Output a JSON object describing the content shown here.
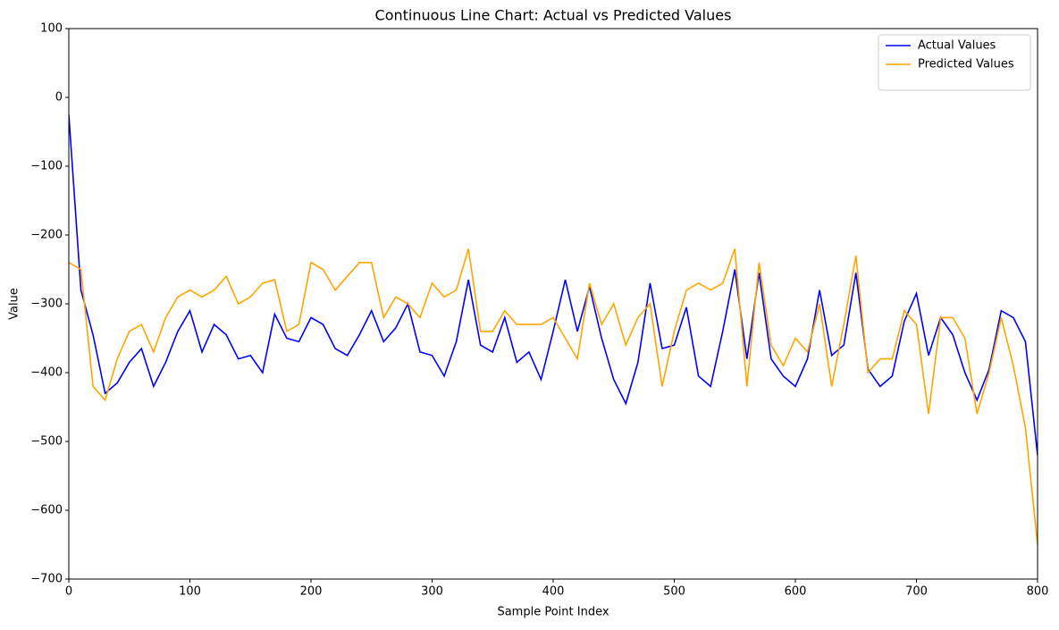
{
  "chart_data": {
    "type": "line",
    "title": "Continuous Line Chart: Actual vs Predicted Values",
    "x_label": "Sample Point Index",
    "y_label": "Value",
    "x": [
      0,
      10,
      20,
      30,
      40,
      50,
      60,
      70,
      80,
      90,
      100,
      110,
      120,
      130,
      140,
      150,
      160,
      170,
      180,
      190,
      200,
      210,
      220,
      230,
      240,
      250,
      260,
      270,
      280,
      290,
      300,
      310,
      320,
      330,
      340,
      350,
      360,
      370,
      380,
      390,
      400,
      410,
      420,
      430,
      440,
      450,
      460,
      470,
      480,
      490,
      500,
      510,
      520,
      530,
      540,
      550,
      560,
      570,
      580,
      590,
      600,
      610,
      620,
      630,
      640,
      650,
      660,
      670,
      680,
      690,
      700,
      710,
      720,
      730,
      740,
      750,
      760,
      770,
      780,
      790,
      800
    ],
    "series": [
      {
        "name": "Actual Values",
        "color": "#0000ff",
        "values": [
          -25,
          -280,
          -345,
          -430,
          -415,
          -385,
          -365,
          -420,
          -385,
          -340,
          -310,
          -370,
          -330,
          -345,
          -380,
          -375,
          -400,
          -315,
          -350,
          -355,
          -320,
          -330,
          -365,
          -375,
          -345,
          -310,
          -355,
          -335,
          -300,
          -370,
          -375,
          -405,
          -355,
          -265,
          -360,
          -370,
          -320,
          -385,
          -370,
          -410,
          -340,
          -265,
          -340,
          -275,
          -350,
          -410,
          -445,
          -385,
          -270,
          -365,
          -360,
          -305,
          -405,
          -420,
          -340,
          -250,
          -380,
          -255,
          -380,
          -405,
          -420,
          -380,
          -280,
          -375,
          -360,
          -255,
          -395,
          -420,
          -405,
          -325,
          -285,
          -375,
          -320,
          -345,
          -400,
          -440,
          -395,
          -310,
          -320,
          -355,
          -520
        ]
      },
      {
        "name": "Predicted Values",
        "color": "#ffa500",
        "values": [
          -240,
          -250,
          -420,
          -440,
          -380,
          -340,
          -330,
          -370,
          -320,
          -290,
          -280,
          -290,
          -280,
          -260,
          -300,
          -290,
          -270,
          -265,
          -340,
          -330,
          -240,
          -250,
          -280,
          -260,
          -240,
          -240,
          -320,
          -290,
          -300,
          -320,
          -270,
          -290,
          -280,
          -220,
          -340,
          -340,
          -310,
          -330,
          -330,
          -330,
          -320,
          -350,
          -380,
          -270,
          -330,
          -300,
          -360,
          -320,
          -300,
          -420,
          -340,
          -280,
          -270,
          -280,
          -270,
          -220,
          -420,
          -240,
          -360,
          -390,
          -350,
          -370,
          -300,
          -420,
          -330,
          -230,
          -400,
          -380,
          -380,
          -310,
          -330,
          -460,
          -320,
          -320,
          -350,
          -460,
          -400,
          -320,
          -390,
          -480,
          -650
        ]
      }
    ],
    "xlim": [
      0,
      800
    ],
    "ylim": [
      -700,
      100
    ],
    "xticks": [
      0,
      100,
      200,
      300,
      400,
      500,
      600,
      700,
      800
    ],
    "yticks": [
      {
        "value": -700,
        "label": "−700"
      },
      {
        "value": -600,
        "label": "−600"
      },
      {
        "value": -500,
        "label": "−500"
      },
      {
        "value": -400,
        "label": "−400"
      },
      {
        "value": -300,
        "label": "−300"
      },
      {
        "value": -200,
        "label": "−200"
      },
      {
        "value": -100,
        "label": "−100"
      },
      0,
      100
    ],
    "legend": "upper right",
    "grid": false
  }
}
